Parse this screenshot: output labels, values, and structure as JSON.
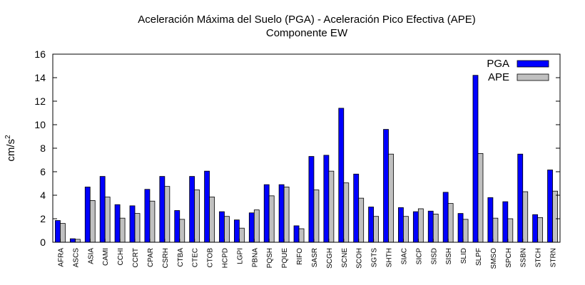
{
  "chart_data": {
    "type": "bar",
    "title": "Aceleración Máxima del Suelo (PGA) -  Aceleración Pico Efectiva (APE)",
    "subtitle": "Componente EW",
    "xlabel": "",
    "ylabel": "cm/s",
    "ylabel_superscript": "2",
    "ylim": [
      0,
      16
    ],
    "yticks": [
      0,
      2,
      4,
      6,
      8,
      10,
      12,
      14,
      16
    ],
    "grid": false,
    "legend_position": "top-right",
    "categories": [
      "AFRA",
      "ASCS",
      "ASIA",
      "CAMI",
      "CCHI",
      "CCRT",
      "CPAR",
      "CSRH",
      "CTBA",
      "CTEC",
      "CTOB",
      "HCPD",
      "LGPI",
      "PBNA",
      "PQSH",
      "PQUE",
      "RIFO",
      "SASR",
      "SCGH",
      "SCNE",
      "SCOH",
      "SGTS",
      "SHTH",
      "SIAC",
      "SICP",
      "SISD",
      "SISH",
      "SLID",
      "SLPF",
      "SMSO",
      "SPCH",
      "SSBN",
      "STCH",
      "STRN"
    ],
    "series": [
      {
        "name": "PGA",
        "color": "#0000ff",
        "values": [
          1.85,
          0.3,
          4.7,
          5.6,
          3.2,
          3.1,
          4.5,
          5.6,
          2.7,
          5.6,
          6.05,
          2.6,
          1.9,
          2.5,
          4.9,
          4.9,
          1.4,
          7.3,
          7.4,
          11.4,
          5.8,
          3.0,
          9.6,
          2.95,
          2.6,
          2.65,
          4.25,
          2.45,
          14.2,
          3.8,
          3.45,
          7.5,
          2.35,
          6.15
        ]
      },
      {
        "name": "APE",
        "color": "#c0c0c0",
        "values": [
          1.6,
          0.25,
          3.55,
          3.85,
          2.05,
          2.45,
          3.5,
          4.75,
          1.95,
          4.45,
          3.85,
          2.2,
          1.2,
          2.75,
          3.95,
          4.7,
          1.15,
          4.45,
          6.05,
          5.05,
          3.75,
          2.2,
          7.5,
          2.2,
          2.85,
          2.4,
          3.3,
          1.95,
          7.55,
          2.05,
          2.0,
          4.3,
          2.1,
          4.35
        ]
      }
    ]
  }
}
